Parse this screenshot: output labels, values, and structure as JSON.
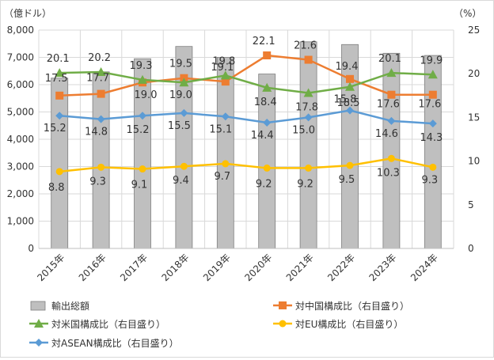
{
  "chart_data": {
    "type": "bar",
    "title": "",
    "left_unit": "（億ドル）",
    "right_unit": "（%）",
    "categories": [
      "2015年",
      "2016年",
      "2017年",
      "2018年",
      "2019年",
      "2020年",
      "2021年",
      "2022年",
      "2023年",
      "2024年"
    ],
    "y_left": {
      "range": [
        0,
        8000
      ],
      "ticks": [
        "0",
        "1,000",
        "2,000",
        "3,000",
        "4,000",
        "5,000",
        "6,000",
        "7,000",
        "8,000"
      ]
    },
    "y_right": {
      "range": [
        0,
        25
      ],
      "ticks": [
        "0",
        "5",
        "10",
        "15",
        "20",
        "25"
      ]
    },
    "grid": true,
    "legend_position": "bottom",
    "bar_series": {
      "name": "輸出総額",
      "color": "#bfbfbf",
      "values": [
        6240,
        6470,
        6950,
        7400,
        7000,
        6390,
        7570,
        7470,
        7150,
        7070
      ]
    },
    "line_series": [
      {
        "name": "対中国構成比（右目盛り）",
        "color": "#ed7d31",
        "marker": "square",
        "values": [
          17.5,
          17.7,
          19.0,
          19.5,
          19.1,
          22.1,
          21.6,
          19.4,
          17.6,
          17.6
        ],
        "labels": [
          "17.5",
          "17.7",
          "19.0",
          "19.5",
          "19.1",
          "22.1",
          "21.6",
          "19.4",
          "17.6",
          "17.6"
        ]
      },
      {
        "name": "対米国構成比（右目盛り）",
        "color": "#70ad47",
        "marker": "triangle",
        "values": [
          20.1,
          20.2,
          19.3,
          19.0,
          19.8,
          18.4,
          17.8,
          18.5,
          20.1,
          19.9
        ],
        "labels": [
          "20.1",
          "20.2",
          "19.3",
          "19.0",
          "19.8",
          "18.4",
          "17.8",
          "18.5",
          "20.1",
          "19.9"
        ]
      },
      {
        "name": "対EU構成比（右目盛り）",
        "color": "#ffc000",
        "marker": "circle",
        "values": [
          8.8,
          9.3,
          9.1,
          9.4,
          9.7,
          9.2,
          9.2,
          9.5,
          10.3,
          9.3
        ],
        "labels": [
          "8.8",
          "9.3",
          "9.1",
          "9.4",
          "9.7",
          "9.2",
          "9.2",
          "9.5",
          "10.3",
          "9.3"
        ]
      },
      {
        "name": "対ASEAN構成比（右目盛り）",
        "color": "#5b9bd5",
        "marker": "diamond",
        "values": [
          15.2,
          14.8,
          15.2,
          15.5,
          15.1,
          14.4,
          15.0,
          15.8,
          14.6,
          14.3
        ],
        "labels": [
          "15.2",
          "14.8",
          "15.2",
          "15.5",
          "15.1",
          "14.4",
          "15.0",
          "15.8",
          "14.6",
          "14.3"
        ]
      }
    ]
  }
}
